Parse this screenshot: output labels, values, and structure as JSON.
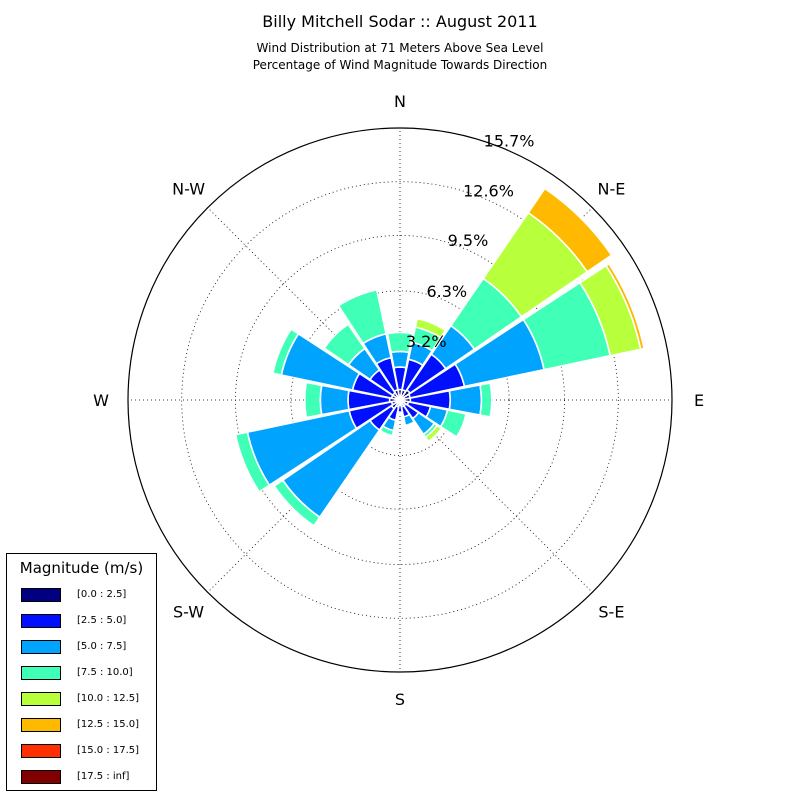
{
  "chart_data": {
    "type": "windrose",
    "title": "Billy Mitchell Sodar :: August 2011",
    "subtitle_line1": "Wind Distribution at 71 Meters Above Sea Level",
    "subtitle_line2": "Percentage of Wind Magnitude Towards Direction",
    "direction_labels": [
      "N",
      "N-E",
      "E",
      "S-E",
      "S",
      "S-W",
      "W",
      "N-W"
    ],
    "radial_tick_labels": [
      "3.2%",
      "6.3%",
      "9.5%",
      "12.6%",
      "15.7%"
    ],
    "radial_ticks": [
      3.2,
      6.3,
      9.5,
      12.6,
      15.7
    ],
    "rmax": 15.7,
    "legend_title": "Magnitude (m/s)",
    "bins": [
      {
        "label": "[0.0 : 2.5]",
        "color": "#000080"
      },
      {
        "label": "[2.5 : 5.0]",
        "color": "#0010ff"
      },
      {
        "label": "[5.0 : 7.5]",
        "color": "#00a4ff"
      },
      {
        "label": "[7.5 : 10.0]",
        "color": "#40ffb7"
      },
      {
        "label": "[10.0 : 12.5]",
        "color": "#b8ff3c"
      },
      {
        "label": "[12.5 : 15.0]",
        "color": "#ffb900"
      },
      {
        "label": "[15.0 : 17.5]",
        "color": "#ff3000"
      },
      {
        "label": "[17.5 : inf]",
        "color": "#800000"
      }
    ],
    "sectors": [
      {
        "direction_deg": 0,
        "cumulative_percent": [
          0.6,
          1.9,
          2.8,
          3.9
        ]
      },
      {
        "direction_deg": 22.5,
        "cumulative_percent": [
          0.6,
          2.4,
          3.4,
          4.3,
          4.8
        ]
      },
      {
        "direction_deg": 45,
        "cumulative_percent": [
          0.7,
          3.2,
          5.2,
          8.5,
          13.1,
          14.8
        ]
      },
      {
        "direction_deg": 67.5,
        "cumulative_percent": [
          0.6,
          3.8,
          8.5,
          12.4,
          14.2,
          14.4
        ]
      },
      {
        "direction_deg": 90,
        "cumulative_percent": [
          0.6,
          2.9,
          4.7,
          5.3
        ]
      },
      {
        "direction_deg": 112.5,
        "cumulative_percent": [
          0.5,
          1.8,
          2.8,
          3.9
        ]
      },
      {
        "direction_deg": 135,
        "cumulative_percent": [
          0.4,
          1.3,
          2.4,
          2.6,
          2.9
        ]
      },
      {
        "direction_deg": 157.5,
        "cumulative_percent": [
          0.4,
          1.0,
          1.5
        ]
      },
      {
        "direction_deg": 180,
        "cumulative_percent": [
          0.3,
          0.7
        ]
      },
      {
        "direction_deg": 202.5,
        "cumulative_percent": [
          0.4,
          1.2,
          1.8,
          2.1
        ]
      },
      {
        "direction_deg": 225,
        "cumulative_percent": [
          0.6,
          2.1,
          8.2,
          8.8
        ]
      },
      {
        "direction_deg": 247.5,
        "cumulative_percent": [
          0.5,
          3.0,
          9.0,
          9.7
        ]
      },
      {
        "direction_deg": 270,
        "cumulative_percent": [
          0.6,
          3.0,
          4.6,
          5.5
        ]
      },
      {
        "direction_deg": 292.5,
        "cumulative_percent": [
          0.5,
          2.8,
          7.0,
          7.5
        ]
      },
      {
        "direction_deg": 315,
        "cumulative_percent": [
          0.5,
          2.1,
          3.6,
          5.3
        ]
      },
      {
        "direction_deg": 337.5,
        "cumulative_percent": [
          0.6,
          2.5,
          3.9,
          6.5
        ]
      }
    ]
  }
}
